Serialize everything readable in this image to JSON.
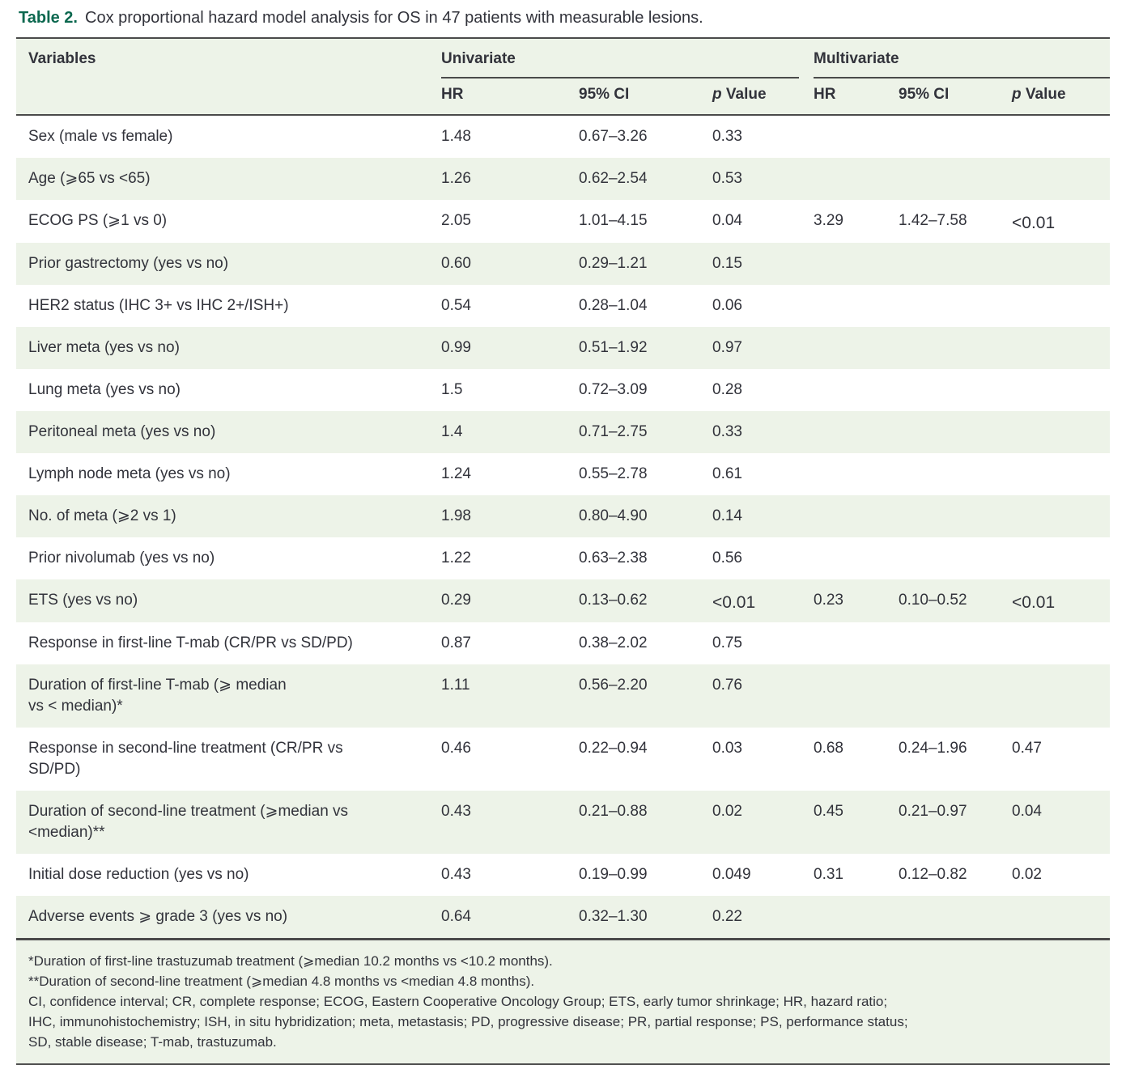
{
  "title": {
    "label": "Table 2.",
    "text": "Cox proportional hazard model analysis for OS in 47 patients with measurable lesions."
  },
  "table": {
    "header": {
      "variables": "Variables",
      "univariate": "Univariate",
      "multivariate": "Multivariate",
      "hr": "HR",
      "ci": "95% CI",
      "p_italic": "p",
      "p_rest": " Value"
    },
    "rows": [
      {
        "variable": "Sex (male vs female)",
        "uni_hr": "1.48",
        "uni_ci": "0.67–3.26",
        "uni_p": "0.33",
        "multi_hr": "",
        "multi_ci": "",
        "multi_p": ""
      },
      {
        "variable": "Age (⩾65 vs <65)",
        "uni_hr": "1.26",
        "uni_ci": "0.62–2.54",
        "uni_p": "0.53",
        "multi_hr": "",
        "multi_ci": "",
        "multi_p": ""
      },
      {
        "variable": "ECOG PS (⩾1 vs 0)",
        "uni_hr": "2.05",
        "uni_ci": "1.01–4.15",
        "uni_p": "0.04",
        "multi_hr": "3.29",
        "multi_ci": "1.42–7.58",
        "multi_p": "<0.01"
      },
      {
        "variable": "Prior gastrectomy (yes vs no)",
        "uni_hr": "0.60",
        "uni_ci": "0.29–1.21",
        "uni_p": "0.15",
        "multi_hr": "",
        "multi_ci": "",
        "multi_p": ""
      },
      {
        "variable": "HER2 status (IHC 3+ vs IHC 2+/ISH+)",
        "uni_hr": "0.54",
        "uni_ci": "0.28–1.04",
        "uni_p": "0.06",
        "multi_hr": "",
        "multi_ci": "",
        "multi_p": ""
      },
      {
        "variable": "Liver meta (yes vs no)",
        "uni_hr": "0.99",
        "uni_ci": "0.51–1.92",
        "uni_p": "0.97",
        "multi_hr": "",
        "multi_ci": "",
        "multi_p": ""
      },
      {
        "variable": "Lung meta (yes vs no)",
        "uni_hr": "1.5",
        "uni_ci": "0.72–3.09",
        "uni_p": "0.28",
        "multi_hr": "",
        "multi_ci": "",
        "multi_p": ""
      },
      {
        "variable": "Peritoneal meta (yes vs no)",
        "uni_hr": "1.4",
        "uni_ci": "0.71–2.75",
        "uni_p": "0.33",
        "multi_hr": "",
        "multi_ci": "",
        "multi_p": ""
      },
      {
        "variable": "Lymph node meta (yes vs no)",
        "uni_hr": "1.24",
        "uni_ci": "0.55–2.78",
        "uni_p": "0.61",
        "multi_hr": "",
        "multi_ci": "",
        "multi_p": ""
      },
      {
        "variable": "No. of meta (⩾2 vs 1)",
        "uni_hr": "1.98",
        "uni_ci": "0.80–4.90",
        "uni_p": "0.14",
        "multi_hr": "",
        "multi_ci": "",
        "multi_p": ""
      },
      {
        "variable": "Prior nivolumab (yes vs no)",
        "uni_hr": "1.22",
        "uni_ci": "0.63–2.38",
        "uni_p": "0.56",
        "multi_hr": "",
        "multi_ci": "",
        "multi_p": ""
      },
      {
        "variable": "ETS (yes vs no)",
        "uni_hr": "0.29",
        "uni_ci": "0.13–0.62",
        "uni_p": "<0.01",
        "multi_hr": "0.23",
        "multi_ci": "0.10–0.52",
        "multi_p": "<0.01"
      },
      {
        "variable": "Response in first-line T-mab (CR/PR vs SD/PD)",
        "uni_hr": "0.87",
        "uni_ci": "0.38–2.02",
        "uni_p": "0.75",
        "multi_hr": "",
        "multi_ci": "",
        "multi_p": ""
      },
      {
        "variable": "Duration of first-line T-mab (⩾ median",
        "variable2": "vs < median)*",
        "uni_hr": "1.11",
        "uni_ci": "0.56–2.20",
        "uni_p": "0.76",
        "multi_hr": "",
        "multi_ci": "",
        "multi_p": ""
      },
      {
        "variable": "Response in second-line treatment (CR/PR vs",
        "variable2": "SD/PD)",
        "uni_hr": "0.46",
        "uni_ci": "0.22–0.94",
        "uni_p": "0.03",
        "multi_hr": "0.68",
        "multi_ci": "0.24–1.96",
        "multi_p": "0.47"
      },
      {
        "variable": "Duration of second-line treatment (⩾median vs",
        "variable2": "<median)**",
        "uni_hr": "0.43",
        "uni_ci": "0.21–0.88",
        "uni_p": "0.02",
        "multi_hr": "0.45",
        "multi_ci": "0.21–0.97",
        "multi_p": "0.04"
      },
      {
        "variable": "Initial dose reduction (yes vs no)",
        "uni_hr": "0.43",
        "uni_ci": "0.19–0.99",
        "uni_p": "0.049",
        "multi_hr": "0.31",
        "multi_ci": "0.12–0.82",
        "multi_p": "0.02"
      },
      {
        "variable": "Adverse events ⩾ grade 3 (yes vs no)",
        "uni_hr": "0.64",
        "uni_ci": "0.32–1.30",
        "uni_p": "0.22",
        "multi_hr": "",
        "multi_ci": "",
        "multi_p": ""
      }
    ]
  },
  "footnotes": [
    "*Duration of first-line trastuzumab treatment (⩾median 10.2 months vs <10.2 months).",
    "**Duration of second-line treatment (⩾median 4.8 months vs <median 4.8 months).",
    "CI, confidence interval; CR, complete response; ECOG, Eastern Cooperative Oncology Group; ETS, early tumor shrinkage; HR, hazard ratio;",
    "IHC, immunohistochemistry; ISH, in situ hybridization; meta, metastasis; PD, progressive disease; PR, partial response; PS, performance status;",
    "SD, stable disease; T-mab, trastuzumab."
  ],
  "colors": {
    "stripe_green": "#edf3e8",
    "rule_dark": "#4a4a4a",
    "title_green": "#0c684f",
    "text": "#32333b"
  }
}
